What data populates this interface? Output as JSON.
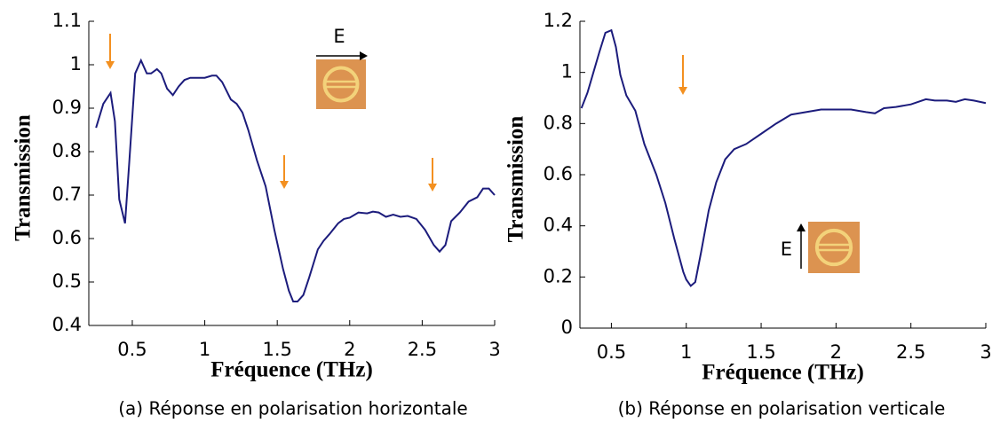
{
  "chart_data": [
    {
      "type": "line",
      "xlabel": "Fréquence (THz)",
      "ylabel": "Transmission",
      "caption": "(a) Réponse en polarisation horizontale",
      "field_label": "E",
      "xlim": [
        0.2,
        3
      ],
      "xticks": [
        0.5,
        1,
        1.5,
        2,
        2.5,
        3
      ],
      "ylim": [
        0.4,
        1.1
      ],
      "yticks": [
        0.4,
        0.5,
        0.6,
        0.7,
        0.8,
        0.9,
        1,
        1.1
      ],
      "color": "#1c1c7c",
      "x": [
        0.25,
        0.3,
        0.35,
        0.38,
        0.41,
        0.45,
        0.48,
        0.52,
        0.56,
        0.6,
        0.63,
        0.67,
        0.7,
        0.74,
        0.78,
        0.82,
        0.86,
        0.9,
        1.0,
        1.05,
        1.08,
        1.12,
        1.18,
        1.22,
        1.26,
        1.3,
        1.36,
        1.42,
        1.48,
        1.54,
        1.58,
        1.61,
        1.64,
        1.68,
        1.72,
        1.78,
        1.82,
        1.86,
        1.92,
        1.96,
        2.0,
        2.06,
        2.12,
        2.16,
        2.2,
        2.25,
        2.3,
        2.35,
        2.4,
        2.46,
        2.52,
        2.58,
        2.62,
        2.66,
        2.7,
        2.76,
        2.82,
        2.88,
        2.92,
        2.96,
        3.0
      ],
      "values": [
        0.855,
        0.91,
        0.935,
        0.87,
        0.69,
        0.635,
        0.78,
        0.98,
        1.01,
        0.98,
        0.98,
        0.99,
        0.98,
        0.945,
        0.93,
        0.95,
        0.965,
        0.97,
        0.97,
        0.975,
        0.975,
        0.96,
        0.92,
        0.91,
        0.89,
        0.85,
        0.78,
        0.72,
        0.62,
        0.53,
        0.48,
        0.455,
        0.455,
        0.47,
        0.51,
        0.575,
        0.595,
        0.61,
        0.635,
        0.645,
        0.648,
        0.66,
        0.658,
        0.662,
        0.66,
        0.65,
        0.655,
        0.65,
        0.652,
        0.645,
        0.62,
        0.585,
        0.57,
        0.585,
        0.64,
        0.66,
        0.685,
        0.695,
        0.715,
        0.715,
        0.7
      ]
    },
    {
      "type": "line",
      "xlabel": "Fréquence (THz)",
      "ylabel": "Transmission",
      "caption": "(b) Réponse en polarisation verticale",
      "field_label": "E",
      "xlim": [
        0.29,
        3
      ],
      "xticks": [
        0.5,
        1,
        1.5,
        2,
        2.5,
        3
      ],
      "ylim": [
        0,
        1.2
      ],
      "yticks": [
        0,
        0.2,
        0.4,
        0.6,
        0.8,
        1,
        1.2
      ],
      "color": "#1c1c7c",
      "x": [
        0.3,
        0.34,
        0.38,
        0.42,
        0.46,
        0.5,
        0.53,
        0.56,
        0.6,
        0.66,
        0.72,
        0.8,
        0.86,
        0.92,
        0.98,
        1.0,
        1.03,
        1.06,
        1.1,
        1.15,
        1.2,
        1.26,
        1.32,
        1.4,
        1.5,
        1.6,
        1.7,
        1.8,
        1.9,
        2.0,
        2.1,
        2.2,
        2.26,
        2.32,
        2.4,
        2.5,
        2.6,
        2.66,
        2.74,
        2.8,
        2.86,
        2.92,
        3.0
      ],
      "values": [
        0.86,
        0.92,
        1.0,
        1.08,
        1.155,
        1.165,
        1.1,
        0.99,
        0.91,
        0.85,
        0.72,
        0.6,
        0.49,
        0.35,
        0.22,
        0.19,
        0.165,
        0.18,
        0.3,
        0.46,
        0.57,
        0.66,
        0.7,
        0.72,
        0.76,
        0.8,
        0.835,
        0.845,
        0.855,
        0.855,
        0.855,
        0.845,
        0.84,
        0.86,
        0.865,
        0.875,
        0.895,
        0.89,
        0.89,
        0.885,
        0.895,
        0.89,
        0.88
      ]
    }
  ]
}
